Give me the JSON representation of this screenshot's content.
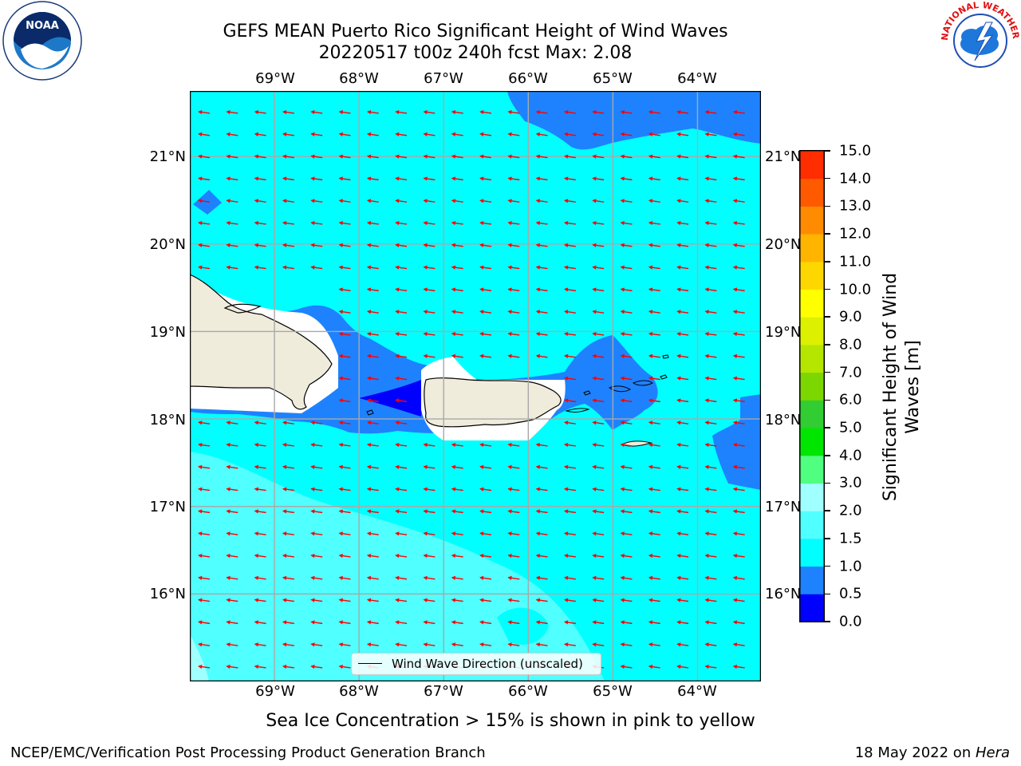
{
  "title": {
    "line1": "GEFS MEAN Puerto Rico Significant Height of Wind Waves",
    "line2": "20220517 t00z 240h fcst   Max: 2.08"
  },
  "logos": {
    "noaa_text": "NOAA",
    "nws_text": "NATIONAL WEATHER SERVICE"
  },
  "map": {
    "lon_labels": [
      "69°W",
      "68°W",
      "67°W",
      "66°W",
      "65°W",
      "64°W"
    ],
    "lat_labels": [
      "21°N",
      "20°N",
      "19°N",
      "18°N",
      "17°N",
      "16°N"
    ],
    "lon_range": [
      -70.0,
      -63.25
    ],
    "lat_range": [
      15.0,
      21.75
    ],
    "grid": true,
    "arrow_direction": "westward (slightly south of west)",
    "arrow_color": "#ff0000",
    "land_color": "#efecdc"
  },
  "legend": {
    "label": "Wind Wave Direction (unscaled)"
  },
  "colorbar": {
    "title": "Significant Height of Wind Waves [m]",
    "title_line1": "Significant Height of Wind",
    "title_line2": "Waves [m]",
    "ticks": [
      "15.0",
      "14.0",
      "13.0",
      "12.0",
      "11.0",
      "10.0",
      "9.0",
      "8.0",
      "7.0",
      "6.0",
      "5.0",
      "4.0",
      "3.0",
      "2.0",
      "1.5",
      "1.0",
      "0.5",
      "0.0"
    ],
    "colors": [
      "#0000ff",
      "#1e82ff",
      "#00ffff",
      "#50ffff",
      "#a0ffff",
      "#50ff80",
      "#00e600",
      "#32cd32",
      "#7cd600",
      "#b4e600",
      "#dcf000",
      "#ffff00",
      "#ffd700",
      "#ffb400",
      "#ff8c00",
      "#ff5a00",
      "#ff2d00",
      "#ff0000"
    ]
  },
  "caption": "Sea Ice Concentration > 15% is shown in pink to yellow",
  "footer": {
    "left": "NCEP/EMC/Verification Post Processing Product Generation Branch",
    "right_date": "18 May 2022 on ",
    "right_host": "Hera"
  }
}
